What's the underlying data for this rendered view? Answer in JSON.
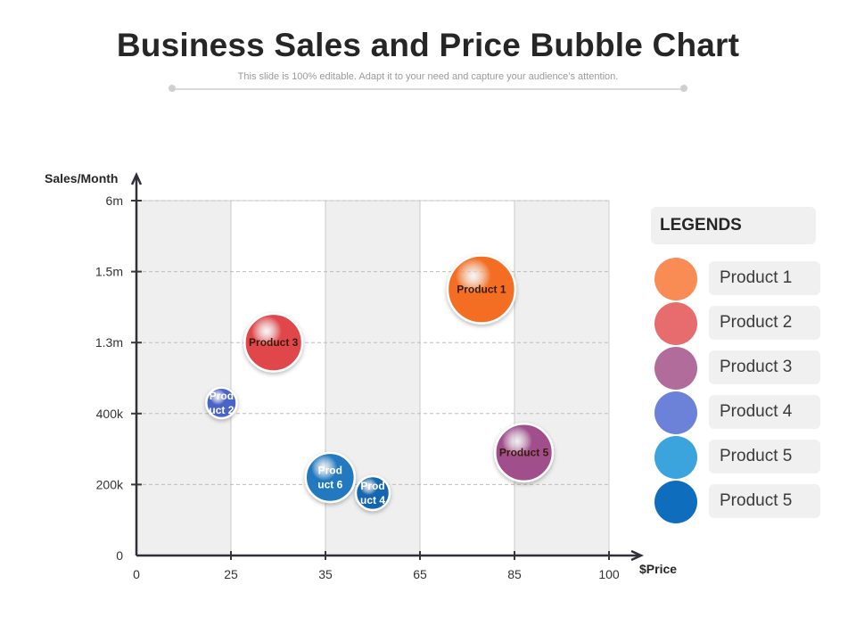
{
  "header": {
    "title": "Business Sales and Price Bubble Chart",
    "subtitle": "This slide is 100% editable. Adapt it to your need and capture your audience’s attention."
  },
  "chart_data": {
    "type": "scatter",
    "title": "Business Sales and Price Bubble Chart",
    "xlabel": "$Price",
    "ylabel": "Sales/Month",
    "x_ticks": [
      "0",
      "25",
      "35",
      "65",
      "85",
      "100"
    ],
    "y_ticks": [
      "0",
      "200k",
      "400k",
      "1.3m",
      "1.5m",
      "6m"
    ],
    "grid": true,
    "series": [
      {
        "name": "Product 1",
        "label": [
          "Product 1"
        ],
        "x_pos": 3.65,
        "y_pos": 3.75,
        "size": 2.0,
        "color": "#F36E21"
      },
      {
        "name": "Product 2",
        "label": [
          "Prod",
          "uct 2"
        ],
        "x_pos": 0.9,
        "y_pos": 2.15,
        "size": 0.9,
        "color": "#4A64C8"
      },
      {
        "name": "Product 3",
        "label": [
          "Product 3"
        ],
        "x_pos": 1.45,
        "y_pos": 3.0,
        "size": 1.7,
        "color": "#E0474C"
      },
      {
        "name": "Product 4",
        "label": [
          "Prod",
          "uct 4"
        ],
        "x_pos": 2.5,
        "y_pos": 0.88,
        "size": 1.0,
        "color": "#1565B0"
      },
      {
        "name": "Product 5",
        "label": [
          "Product 5"
        ],
        "x_pos": 4.1,
        "y_pos": 1.45,
        "size": 1.7,
        "color": "#A0508C"
      },
      {
        "name": "Product 6",
        "label": [
          "Prod",
          "uct 6"
        ],
        "x_pos": 2.05,
        "y_pos": 1.1,
        "size": 1.45,
        "color": "#2479C0"
      }
    ]
  },
  "legend": {
    "title": "LEGENDS",
    "items": [
      {
        "label": "Product 1",
        "color": "#F98B55"
      },
      {
        "label": "Product 2",
        "color": "#E76C6E"
      },
      {
        "label": "Product 3",
        "color": "#B26C9C"
      },
      {
        "label": "Product 4",
        "color": "#6C82D8"
      },
      {
        "label": "Product 5",
        "color": "#3BA4DD"
      },
      {
        "label": "Product 5",
        "color": "#0F6DBE"
      }
    ]
  }
}
